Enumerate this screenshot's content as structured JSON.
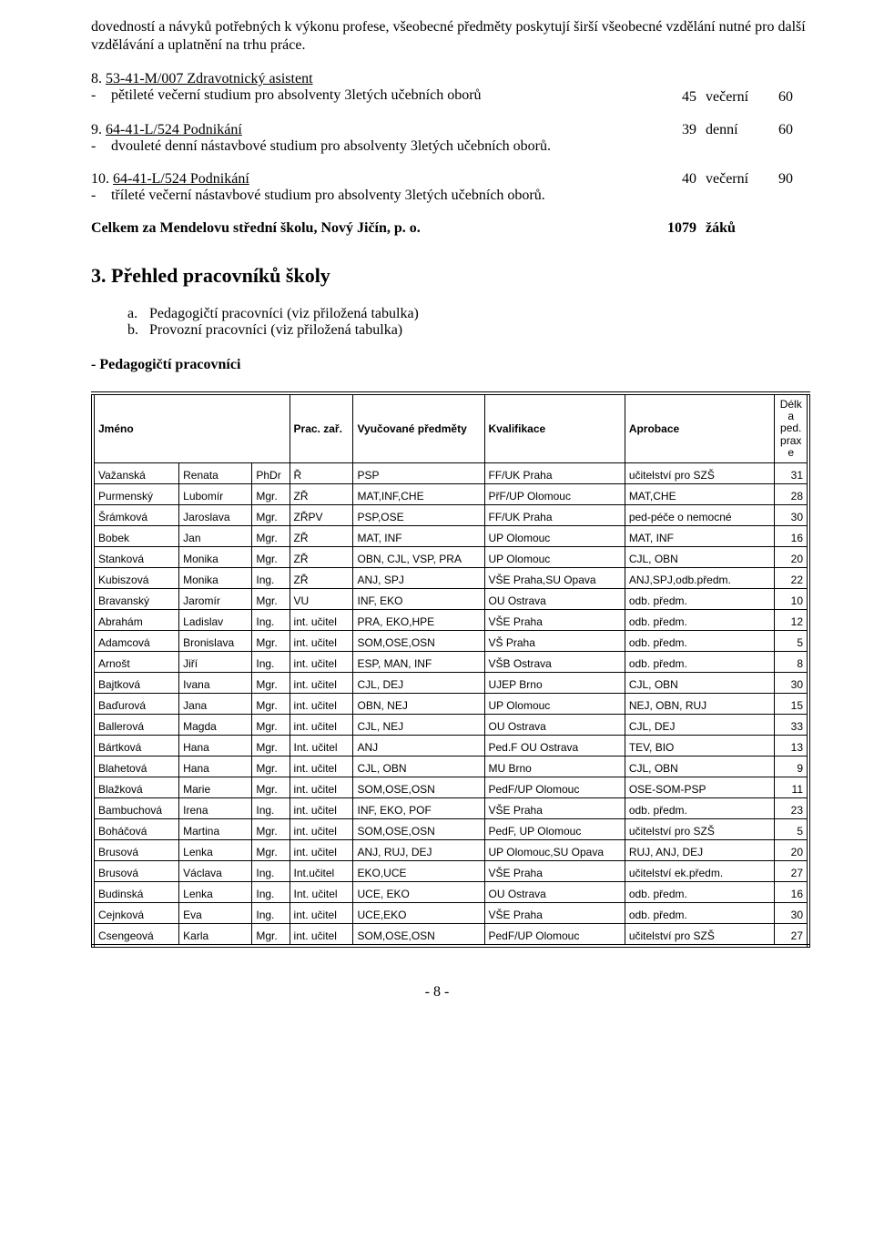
{
  "intro_para": "dovedností a návyků potřebných k výkonu profese, všeobecné předměty poskytují širší všeobecné vzdělání nutné pro další vzdělávání a uplatnění na trhu práce.",
  "items": [
    {
      "num": "8.",
      "title": "53-41-M/007 Zdravotnický asistent",
      "desc": "pětileté večerní studium pro absolventy 3letých učebních oborů",
      "col1": "45",
      "col2": "večerní",
      "col3": "60"
    },
    {
      "num": "9.",
      "title": "64-41-L/524 Podnikání",
      "desc": "dvouleté denní nástavbové studium pro absolventy 3letých učebních oborů.",
      "col1": "39",
      "col2": "denní",
      "col3": "60"
    },
    {
      "num": "10.",
      "title": "64-41-L/524 Podnikání",
      "desc": "tříleté večerní nástavbové studium pro absolventy 3letých učebních oborů.",
      "col1": "40",
      "col2": "večerní",
      "col3": "90"
    }
  ],
  "total": {
    "label": "Celkem za Mendelovu střední školu, Nový Jičín, p. o.",
    "value": "1079",
    "unit": "žáků"
  },
  "section3": {
    "heading": "3.    Přehled pracovníků školy",
    "a": "Pedagogičtí pracovníci (viz přiložená tabulka)",
    "b": "Provozní pracovníci (viz přiložená tabulka)",
    "dash": "-  Pedagogičtí pracovníci"
  },
  "table": {
    "headers": {
      "jmeno": "Jméno",
      "prac": "Prac. zař.",
      "vyuc": "Vyučované předměty",
      "kval": "Kvalifikace",
      "aprob": "Aprobace",
      "delka": "Délk\na\nped.\nprax\ne"
    },
    "col_widths": [
      "92",
      "78",
      "40",
      "68",
      "140",
      "150",
      "160",
      "36"
    ],
    "rows": [
      [
        "Važanská",
        "Renata",
        "PhDr",
        "Ř",
        "PSP",
        "FF/UK Praha",
        "učitelství pro SZŠ",
        "31"
      ],
      [
        "Purmenský",
        "Lubomír",
        "Mgr.",
        "ZŘ",
        "MAT,INF,CHE",
        "PřF/UP Olomouc",
        "MAT,CHE",
        "28"
      ],
      [
        "Šrámková",
        "Jaroslava",
        "Mgr.",
        "ZŘPV",
        "PSP,OSE",
        "FF/UK Praha",
        "ped-péče o nemocné",
        "30"
      ],
      [
        "Bobek",
        "Jan",
        "Mgr.",
        "ZŘ",
        "MAT, INF",
        "UP Olomouc",
        "MAT, INF",
        "16"
      ],
      [
        "Stanková",
        "Monika",
        "Mgr.",
        "ZŘ",
        "OBN, CJL, VSP, PRA",
        "UP Olomouc",
        "CJL, OBN",
        "20"
      ],
      [
        "Kubiszová",
        "Monika",
        "Ing.",
        "ZŘ",
        "ANJ, SPJ",
        "VŠE Praha,SU Opava",
        "ANJ,SPJ,odb.předm.",
        "22"
      ],
      [
        "Bravanský",
        "Jaromír",
        "Mgr.",
        "VU",
        "INF, EKO",
        "OU Ostrava",
        "odb. předm.",
        "10"
      ],
      [
        "Abrahám",
        "Ladislav",
        "Ing.",
        "int. učitel",
        "PRA, EKO,HPE",
        "VŠE Praha",
        "odb. předm.",
        "12"
      ],
      [
        "Adamcová",
        "Bronislava",
        "Mgr.",
        "int. učitel",
        "SOM,OSE,OSN",
        "VŠ Praha",
        "odb. předm.",
        "5"
      ],
      [
        "Arnošt",
        "Jiří",
        "Ing.",
        "int. učitel",
        "ESP, MAN, INF",
        "VŠB Ostrava",
        "odb. předm.",
        "8"
      ],
      [
        "Bajtková",
        "Ivana",
        "Mgr.",
        "int. učitel",
        "CJL, DEJ",
        "UJEP Brno",
        "CJL, OBN",
        "30"
      ],
      [
        "Baďurová",
        "Jana",
        "Mgr.",
        "int. učitel",
        "OBN, NEJ",
        "UP Olomouc",
        "NEJ, OBN, RUJ",
        "15"
      ],
      [
        "Ballerová",
        "Magda",
        "Mgr.",
        "int. učitel",
        "CJL, NEJ",
        "OU Ostrava",
        "CJL, DEJ",
        "33"
      ],
      [
        "Bártková",
        "Hana",
        "Mgr.",
        "Int. učitel",
        "ANJ",
        "Ped.F OU Ostrava",
        "TEV, BIO",
        "13"
      ],
      [
        "Blahetová",
        "Hana",
        "Mgr.",
        "int. učitel",
        "CJL, OBN",
        "MU Brno",
        "CJL, OBN",
        "9"
      ],
      [
        "Blažková",
        "Marie",
        "Mgr.",
        "int. učitel",
        "SOM,OSE,OSN",
        "PedF/UP Olomouc",
        "OSE-SOM-PSP",
        "11"
      ],
      [
        "Bambuchová",
        "Irena",
        "Ing.",
        "int. učitel",
        "INF, EKO, POF",
        "VŠE Praha",
        "odb. předm.",
        "23"
      ],
      [
        "Boháčová",
        "Martina",
        "Mgr.",
        "int. učitel",
        "SOM,OSE,OSN",
        "PedF, UP Olomouc",
        "učitelství pro SZŠ",
        "5"
      ],
      [
        "Brusová",
        "Lenka",
        "Mgr.",
        "int. učitel",
        "ANJ, RUJ, DEJ",
        "UP Olomouc,SU Opava",
        "RUJ, ANJ, DEJ",
        "20"
      ],
      [
        "Brusová",
        "Václava",
        "Ing.",
        "Int.učitel",
        "EKO,UCE",
        "VŠE Praha",
        "učitelství ek.předm.",
        "27"
      ],
      [
        "Budinská",
        "Lenka",
        "Ing.",
        "Int. učitel",
        "UCE, EKO",
        "OU Ostrava",
        "odb. předm.",
        "16"
      ],
      [
        "Cejnková",
        "Eva",
        "Ing.",
        "int. učitel",
        "UCE,EKO",
        "VŠE Praha",
        "odb. předm.",
        "30"
      ],
      [
        "Csengeová",
        "Karla",
        "Mgr.",
        "int. učitel",
        "SOM,OSE,OSN",
        "PedF/UP Olomouc",
        "učitelství pro SZŠ",
        "27"
      ]
    ]
  },
  "footer": "- 8 -"
}
